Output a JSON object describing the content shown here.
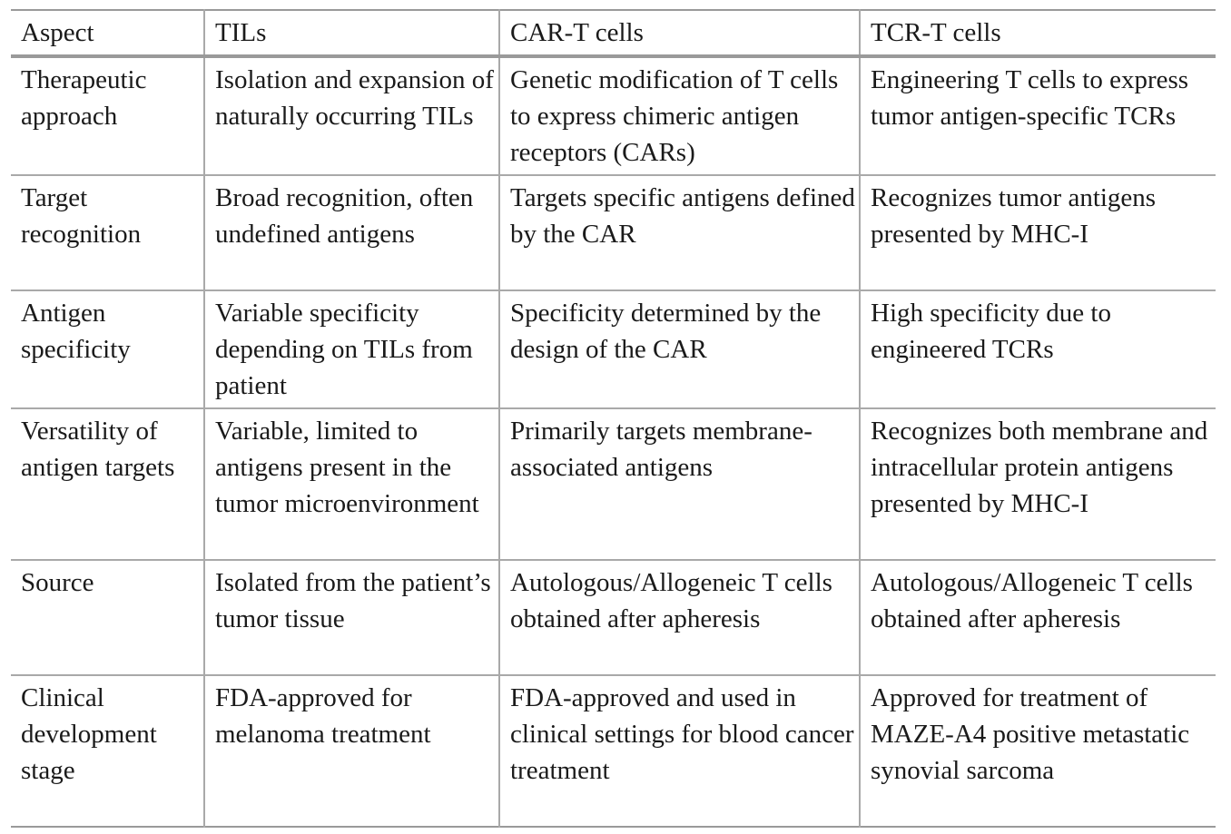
{
  "table": {
    "headers": [
      "Aspect",
      "TILs",
      "CAR-T cells",
      "TCR-T cells"
    ],
    "rows": [
      [
        "Therapeutic approach",
        "Isolation and expansion of naturally occurring TILs",
        "Genetic modification of T cells to express chimeric antigen receptors (CARs)",
        "Engineering T cells to express tumor antigen-specific TCRs"
      ],
      [
        "Target recognition",
        "Broad recognition, often undefined antigens",
        "Targets specific antigens defined by the CAR",
        "Recognizes tumor antigens presented by MHC-I"
      ],
      [
        "Antigen specificity",
        "Variable specificity depending on TILs from patient",
        "Specificity determined by the design of the CAR",
        "High specificity due to engineered TCRs"
      ],
      [
        "Versatility of antigen targets",
        "Variable, limited to antigens present in the tumor microenvironment",
        "Primarily targets membrane-associated antigens",
        "Recognizes both membrane and intracellular protein antigens presented by MHC-I"
      ],
      [
        "Source",
        "Isolated from the patient’s tumor tissue",
        "Autologous/Allogeneic T cells obtained after apheresis",
        "Autologous/Allogeneic T cells obtained after apheresis"
      ],
      [
        "Clinical development stage",
        "FDA-approved for melanoma treatment",
        "FDA-approved and used in clinical settings for blood cancer treatment",
        "Approved for treatment of MAZE-A4 positive metastatic synovial sarcoma"
      ]
    ]
  }
}
